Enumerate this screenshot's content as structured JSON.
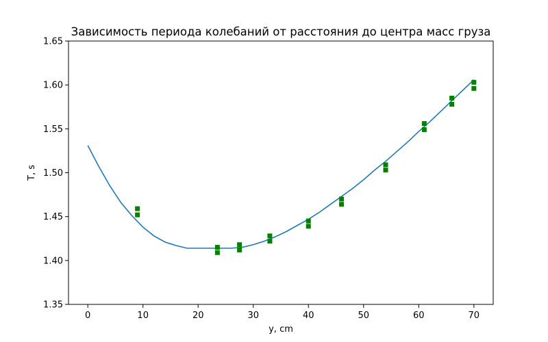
{
  "chart_data": {
    "type": "scatter",
    "title": "Зависимость периода колебаний от расстояния до центра масс груза",
    "xlabel": "y, cm",
    "ylabel": "T, s",
    "xlim": [
      -3.5,
      73.5
    ],
    "ylim": [
      1.35,
      1.65
    ],
    "xticks": [
      0,
      10,
      20,
      30,
      40,
      50,
      60,
      70
    ],
    "yticks": [
      1.35,
      1.4,
      1.45,
      1.5,
      1.55,
      1.6,
      1.65
    ],
    "xtick_labels": [
      "0",
      "10",
      "20",
      "30",
      "40",
      "50",
      "60",
      "70"
    ],
    "ytick_labels": [
      "1.35",
      "1.40",
      "1.45",
      "1.50",
      "1.55",
      "1.60",
      "1.65"
    ],
    "grid": false,
    "series": [
      {
        "kind": "points",
        "color": "#008000",
        "marker": "square",
        "points": [
          {
            "x": 9.0,
            "y": 1.459
          },
          {
            "x": 9.0,
            "y": 1.452
          },
          {
            "x": 23.5,
            "y": 1.415
          },
          {
            "x": 23.5,
            "y": 1.409
          },
          {
            "x": 27.5,
            "y": 1.418
          },
          {
            "x": 27.5,
            "y": 1.412
          },
          {
            "x": 33.0,
            "y": 1.428
          },
          {
            "x": 33.0,
            "y": 1.422
          },
          {
            "x": 40.0,
            "y": 1.445
          },
          {
            "x": 40.0,
            "y": 1.439
          },
          {
            "x": 46.0,
            "y": 1.47
          },
          {
            "x": 46.0,
            "y": 1.464
          },
          {
            "x": 54.0,
            "y": 1.509
          },
          {
            "x": 54.0,
            "y": 1.503
          },
          {
            "x": 61.0,
            "y": 1.556
          },
          {
            "x": 61.0,
            "y": 1.549
          },
          {
            "x": 66.0,
            "y": 1.585
          },
          {
            "x": 66.0,
            "y": 1.578
          },
          {
            "x": 70.0,
            "y": 1.603
          },
          {
            "x": 70.0,
            "y": 1.596
          }
        ]
      },
      {
        "kind": "curve",
        "color": "#1f77b4",
        "x": [
          0,
          2,
          4,
          6,
          8,
          10,
          12,
          14,
          16,
          18,
          20,
          22,
          24,
          26,
          28,
          30,
          32,
          34,
          36,
          38,
          40,
          42,
          44,
          46,
          48,
          50,
          52,
          54,
          56,
          58,
          60,
          62,
          64,
          66,
          68,
          70
        ],
        "y": [
          1.531,
          1.507,
          1.485,
          1.466,
          1.451,
          1.438,
          1.428,
          1.421,
          1.417,
          1.414,
          1.414,
          1.414,
          1.414,
          1.414,
          1.415,
          1.418,
          1.422,
          1.427,
          1.433,
          1.44,
          1.447,
          1.455,
          1.464,
          1.473,
          1.482,
          1.492,
          1.503,
          1.513,
          1.524,
          1.535,
          1.547,
          1.558,
          1.57,
          1.582,
          1.594,
          1.606
        ]
      }
    ]
  }
}
